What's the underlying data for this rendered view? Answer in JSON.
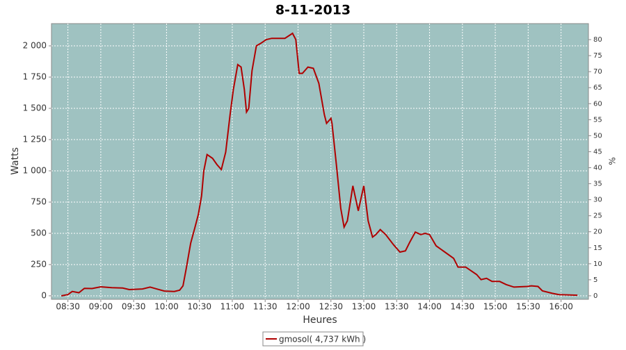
{
  "chart_data": {
    "type": "line",
    "title": "8-11-2013",
    "xlabel": "Heures",
    "ylabel": "Watts",
    "y2label": "%",
    "xlim": [
      "08:15",
      "16:25"
    ],
    "xticks": [
      "08:30",
      "09:00",
      "09:30",
      "10:00",
      "10:30",
      "11:00",
      "11:30",
      "12:00",
      "12:30",
      "13:00",
      "13:30",
      "14:00",
      "14:30",
      "15:00",
      "15:30",
      "16:00"
    ],
    "ylim": [
      -28,
      2178
    ],
    "yticks": [
      0,
      250,
      500,
      750,
      {
        "value": 1000,
        "label": "1 000"
      },
      {
        "value": 1250,
        "label": "1 250"
      },
      {
        "value": 1500,
        "label": "1 500"
      },
      {
        "value": 1750,
        "label": "1 750"
      },
      {
        "value": 2000,
        "label": "2 000"
      }
    ],
    "y2lim": [
      -1.1,
      85
    ],
    "y2ticks": [
      0,
      5,
      10,
      15,
      20,
      25,
      30,
      35,
      40,
      45,
      50,
      55,
      60,
      65,
      70,
      75,
      80
    ],
    "grid": true,
    "background": "#9fc2c1",
    "x": [
      "08:24",
      "08:30",
      "08:34",
      "08:40",
      "08:45",
      "08:52",
      "09:00",
      "09:10",
      "09:20",
      "09:26",
      "09:38",
      "09:45",
      "09:51",
      "09:58",
      "10:07",
      "10:12",
      "10:15",
      "10:18",
      "10:22",
      "10:26",
      "10:29",
      "10:32",
      "10:34",
      "10:37",
      "10:42",
      "10:46",
      "10:50",
      "10:54",
      "10:58",
      "11:01",
      "11:05",
      "11:08",
      "11:11",
      "11:13",
      "11:15",
      "11:18",
      "11:22",
      "11:26",
      "11:31",
      "11:36",
      "11:42",
      "11:48",
      "11:55",
      "11:58",
      "12:01",
      "12:04",
      "12:09",
      "12:14",
      "12:19",
      "12:24",
      "12:26",
      "12:30",
      "12:31",
      "12:35",
      "12:39",
      "12:42",
      "12:45",
      "12:50",
      "12:55",
      "13:00",
      "13:04",
      "13:08",
      "13:11",
      "13:15",
      "13:20",
      "13:27",
      "13:33",
      "13:38",
      "13:42",
      "13:47",
      "13:52",
      "13:56",
      "14:00",
      "14:06",
      "14:14",
      "14:22",
      "14:26",
      "14:33",
      "14:43",
      "14:47",
      "14:52",
      "14:57",
      "15:04",
      "15:10",
      "15:17",
      "15:29",
      "15:33",
      "15:39",
      "15:43",
      "15:52",
      "15:58",
      "16:15"
    ],
    "series": [
      {
        "name": "gmosol( 4,737 kWh )",
        "color": "#b00000",
        "values": [
          0,
          10,
          35,
          25,
          60,
          58,
          72,
          65,
          62,
          50,
          55,
          70,
          55,
          38,
          35,
          45,
          80,
          220,
          420,
          550,
          650,
          800,
          1000,
          1130,
          1100,
          1050,
          1010,
          1150,
          1450,
          1650,
          1850,
          1830,
          1650,
          1470,
          1500,
          1800,
          2000,
          2020,
          2050,
          2060,
          2060,
          2060,
          2100,
          2050,
          1780,
          1780,
          1830,
          1820,
          1700,
          1450,
          1380,
          1420,
          1380,
          1050,
          700,
          550,
          600,
          880,
          680,
          880,
          600,
          470,
          490,
          530,
          490,
          410,
          350,
          360,
          430,
          510,
          490,
          500,
          490,
          400,
          350,
          300,
          230,
          230,
          170,
          130,
          140,
          115,
          115,
          90,
          70,
          75,
          80,
          75,
          40,
          20,
          10,
          5
        ]
      }
    ]
  }
}
